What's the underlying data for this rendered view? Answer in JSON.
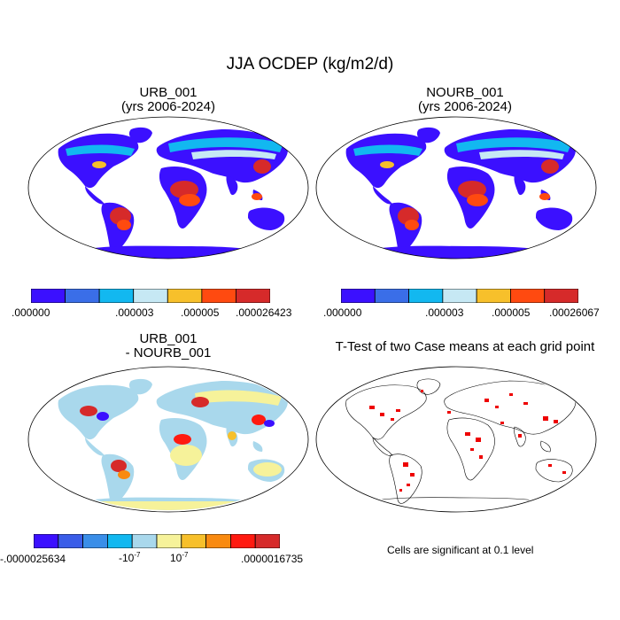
{
  "figure": {
    "title": "JJA OCDEP (kg/m2/d)",
    "note": "Cells are significant at 0.1 level"
  },
  "panels": [
    {
      "id": "urb",
      "title_line1": "URB_001",
      "title_line2": "(yrs 2006-2024)",
      "colorbar": {
        "colors": [
          "#3b10ff",
          "#3a6ee8",
          "#12b8f0",
          "#c6e8f4",
          "#f7c02b",
          "#ff4a10",
          "#d62a2a"
        ],
        "labels": [
          ".000000",
          ".000003",
          ".000005",
          ".000026423"
        ]
      }
    },
    {
      "id": "nourb",
      "title_line1": "NOURB_001",
      "title_line2": "(yrs 2006-2024)",
      "colorbar": {
        "colors": [
          "#3b10ff",
          "#3a6ee8",
          "#12b8f0",
          "#c6e8f4",
          "#f7c02b",
          "#ff4a10",
          "#d62a2a"
        ],
        "labels": [
          ".000000",
          ".000003",
          ".000005",
          ".00026067"
        ]
      }
    },
    {
      "id": "diff",
      "title_line1": "URB_001",
      "title_line2": "- NOURB_001",
      "colorbar": {
        "colors": [
          "#3b10ff",
          "#3a5de8",
          "#3a8ee8",
          "#12b8f0",
          "#a9d8ec",
          "#f6f29a",
          "#f7c02b",
          "#f98a10",
          "#ff1a10",
          "#d62a2a"
        ],
        "labels": [
          "-.0000025634",
          "-10",
          "10",
          ".0000016735"
        ],
        "exponent": "-7"
      }
    },
    {
      "id": "ttest",
      "title_line1": "T-Test of two Case means at each grid point"
    }
  ]
}
